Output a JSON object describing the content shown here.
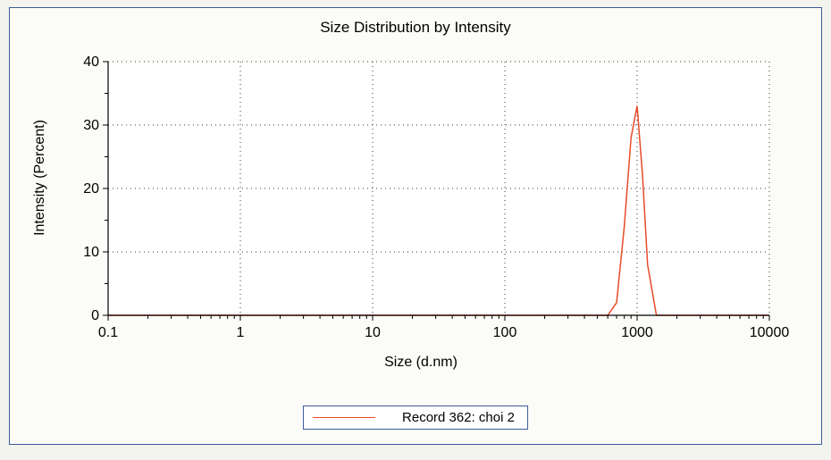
{
  "chart": {
    "type": "line",
    "title": "Size Distribution by Intensity",
    "xlabel": "Size (d.nm)",
    "ylabel": "Intensity (Percent)",
    "xscale": "log",
    "xlim": [
      0.1,
      10000
    ],
    "xticks": [
      0.1,
      1,
      10,
      100,
      1000,
      10000
    ],
    "xtick_labels": [
      "0.1",
      "1",
      "10",
      "100",
      "1000",
      "10000"
    ],
    "ylim": [
      0,
      40
    ],
    "yticks": [
      0,
      10,
      20,
      30,
      40
    ],
    "grid_color": "#333333",
    "grid_dash": "1,4",
    "axis_color": "#000000",
    "background_color": "#ffffff",
    "panel_border_color": "#3a5a9a",
    "title_fontsize": 17,
    "label_fontsize": 16,
    "tick_fontsize": 16,
    "series": [
      {
        "name": "Record 362: choi 2",
        "color": "#e84a2a",
        "line_width": 1.5,
        "x": [
          0.1,
          600,
          700,
          800,
          900,
          1000,
          1100,
          1200,
          1400,
          10000
        ],
        "y": [
          0,
          0,
          2,
          14,
          28,
          33,
          22,
          8,
          0,
          0
        ]
      }
    ],
    "legend": {
      "border_color": "#3a5a9a",
      "background": "#ffffff",
      "position": "bottom-center"
    }
  }
}
